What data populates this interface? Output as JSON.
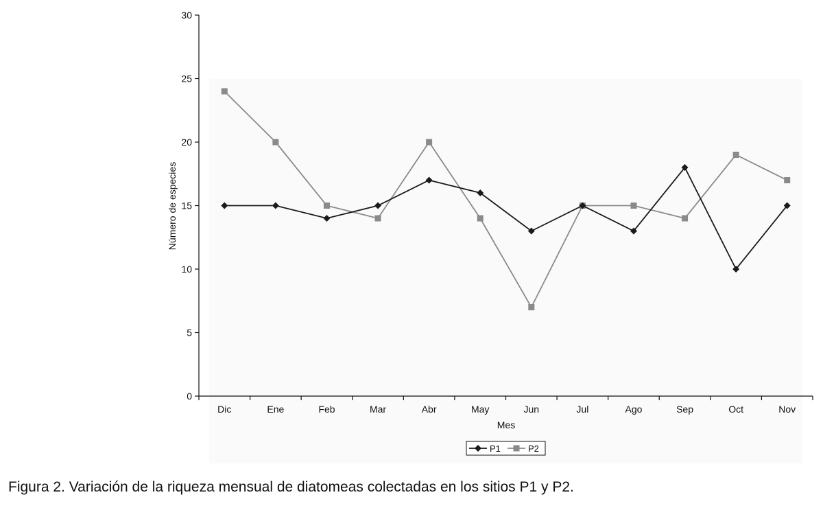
{
  "chart_data": {
    "type": "line",
    "title": "",
    "xlabel": "Mes",
    "ylabel": "Número de especies",
    "ylim": [
      0,
      30
    ],
    "yticks": [
      0,
      5,
      10,
      15,
      20,
      25,
      30
    ],
    "categories": [
      "Dic",
      "Ene",
      "Feb",
      "Mar",
      "Abr",
      "May",
      "Jun",
      "Jul",
      "Ago",
      "Sep",
      "Oct",
      "Nov"
    ],
    "series": [
      {
        "name": "P1",
        "marker": "diamond",
        "color": "#1a1a1a",
        "values": [
          15,
          15,
          14,
          15,
          17,
          16,
          13,
          15,
          13,
          18,
          10,
          15
        ]
      },
      {
        "name": "P2",
        "marker": "square",
        "color": "#8a8a8a",
        "values": [
          24,
          20,
          15,
          14,
          20,
          14,
          7,
          15,
          15,
          14,
          19,
          17
        ]
      }
    ],
    "legend_position": "bottom-center",
    "grid": false
  },
  "caption": "Figura 2. Variación de la riqueza mensual de diatomeas colectadas en los sitios P1 y P2."
}
